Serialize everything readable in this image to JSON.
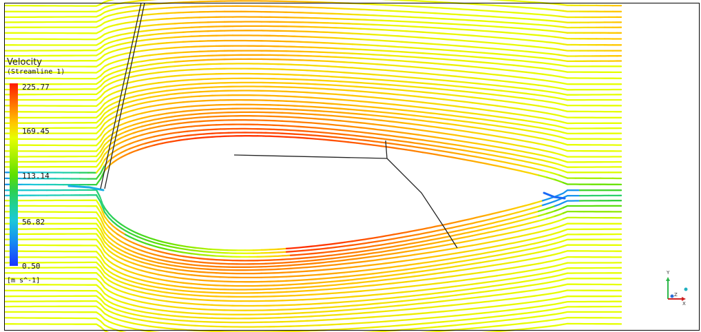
{
  "legend": {
    "title": "Velocity",
    "subtitle": "(Streamline 1)",
    "ticks": [
      "225.77",
      "169.45",
      "113.14",
      "56.82",
      "0.50"
    ],
    "units": "[m s^-1]"
  },
  "axes": {
    "y": "Y",
    "z": "Z",
    "x": "X"
  },
  "colors": {
    "max": "#ff1a00",
    "high": "#ff9a00",
    "mid": "#d8f000",
    "low_mid": "#2fd04a",
    "low": "#1cc8d8",
    "min": "#1a35ff"
  }
}
